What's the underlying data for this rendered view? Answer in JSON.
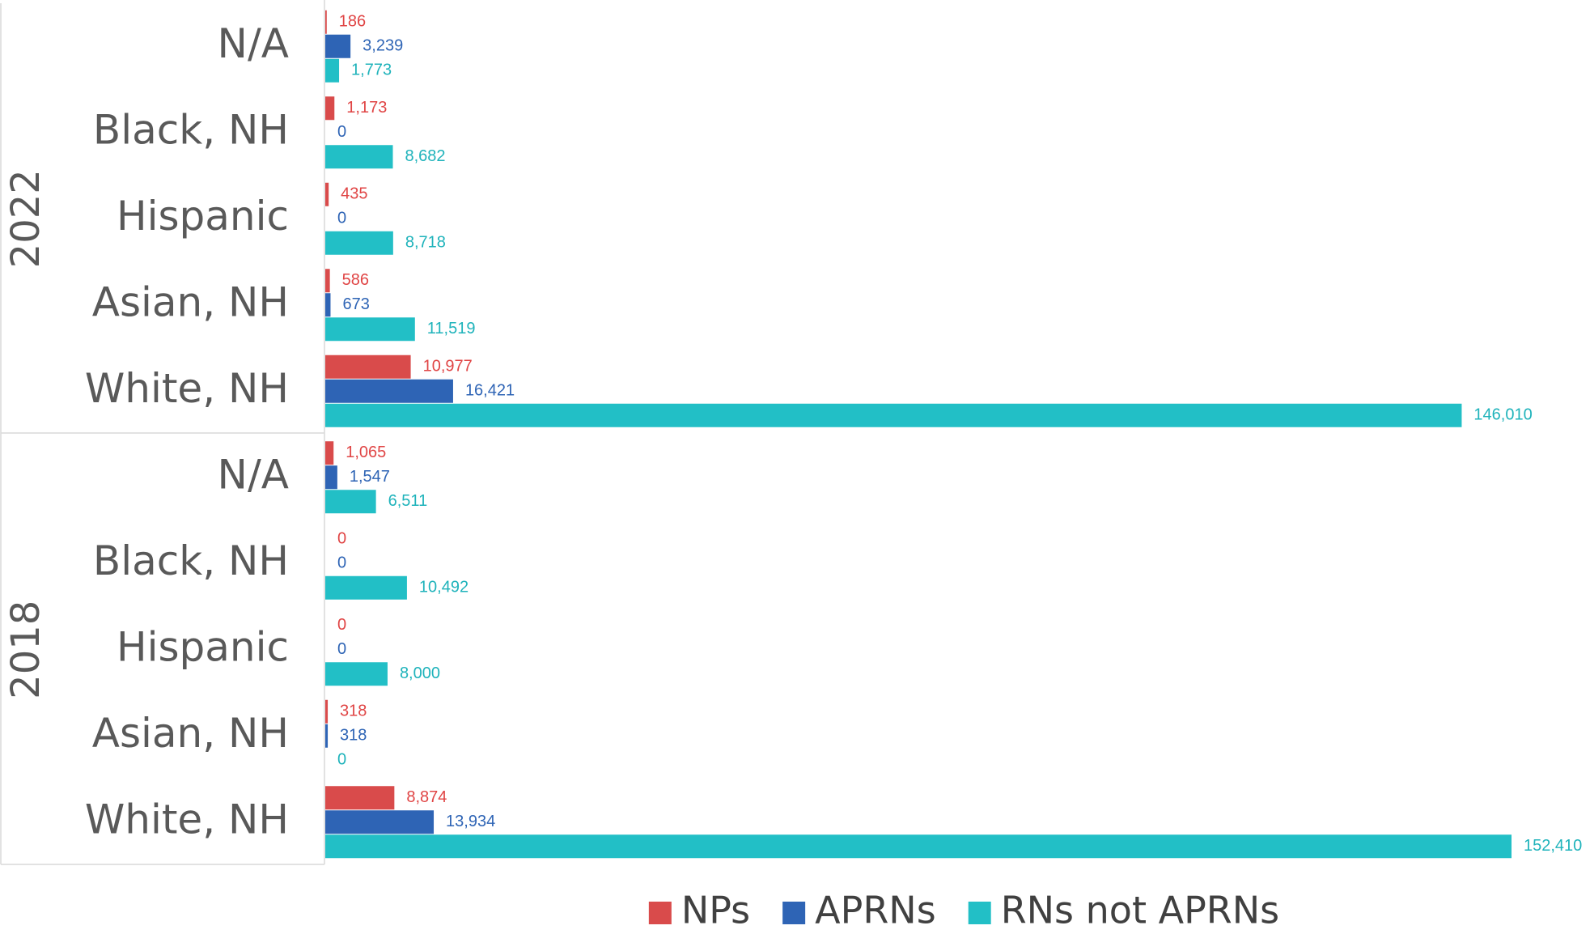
{
  "chart_data": {
    "type": "grouped-hbar",
    "groups": [
      {
        "name": "2022",
        "categories": [
          "N/A",
          "Black, NH",
          "Hispanic",
          "Asian, NH",
          "White, NH"
        ]
      },
      {
        "name": "2018",
        "categories": [
          "N/A",
          "Black, NH",
          "Hispanic",
          "Asian, NH",
          "White, NH"
        ]
      }
    ],
    "series": [
      {
        "name": "NPs",
        "color": "#d94b4b",
        "label_color": "#e04545",
        "values": [
          [
            186,
            1173,
            435,
            586,
            10977
          ],
          [
            1065,
            0,
            0,
            318,
            8874
          ]
        ],
        "value_labels": [
          [
            "186",
            "1,173",
            "435",
            "586",
            "10,977"
          ],
          [
            "1,065",
            "0",
            "0",
            "318",
            "8,874"
          ]
        ]
      },
      {
        "name": "APRNs",
        "color": "#2e64b5",
        "label_color": "#2e64b5",
        "values": [
          [
            3239,
            0,
            0,
            673,
            16421
          ],
          [
            1547,
            0,
            0,
            318,
            13934
          ]
        ],
        "value_labels": [
          [
            "3,239",
            "0",
            "0",
            "673",
            "16,421"
          ],
          [
            "1,547",
            "0",
            "0",
            "318",
            "13,934"
          ]
        ]
      },
      {
        "name": "RNs not APRNs",
        "color": "#22bfc6",
        "label_color": "#1fb3bb",
        "values": [
          [
            1773,
            8682,
            8718,
            11519,
            146010
          ],
          [
            6511,
            10492,
            8000,
            0,
            152410
          ]
        ],
        "value_labels": [
          [
            "1,773",
            "8,682",
            "8,718",
            "11,519",
            "146,010"
          ],
          [
            "6,511",
            "10,492",
            "8,000",
            "0",
            "152,410"
          ]
        ]
      }
    ],
    "xlim": [
      0,
      160000
    ],
    "legend": "bottom"
  }
}
